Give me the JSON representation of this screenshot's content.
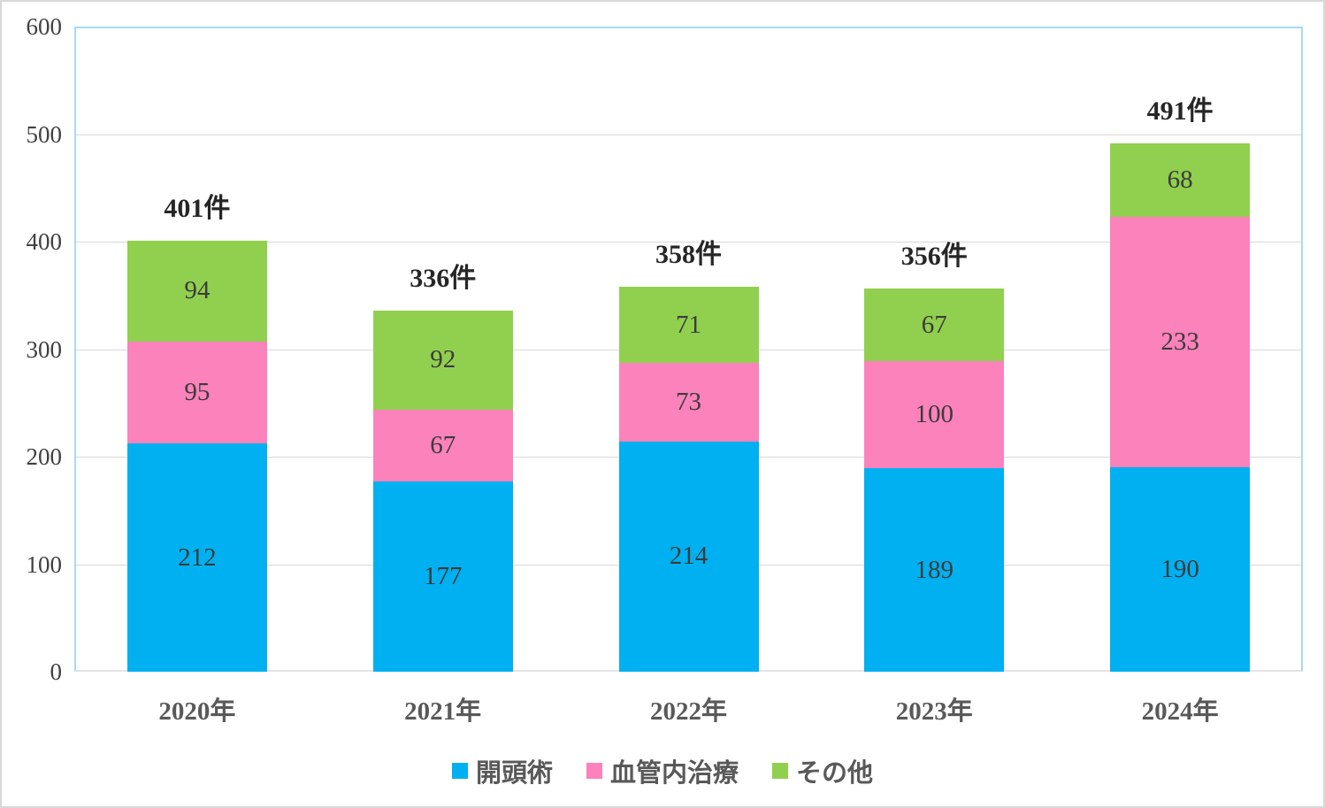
{
  "chart_data": {
    "type": "bar",
    "stacked": true,
    "title": "",
    "xlabel": "",
    "ylabel": "",
    "categories": [
      "2020年",
      "2021年",
      "2022年",
      "2023年",
      "2024年"
    ],
    "series": [
      {
        "name": "開頭術",
        "color": "#00b0f0",
        "values": [
          212,
          177,
          214,
          189,
          190
        ]
      },
      {
        "name": "血管内治療",
        "color": "#fc82bb",
        "values": [
          95,
          67,
          73,
          100,
          233
        ]
      },
      {
        "name": "その他",
        "color": "#90d04e",
        "values": [
          94,
          92,
          71,
          67,
          68
        ]
      }
    ],
    "totals": [
      401,
      336,
      358,
      356,
      491
    ],
    "total_suffix": "件",
    "ylim": [
      0,
      600
    ],
    "yticks": [
      0,
      100,
      200,
      300,
      400,
      500,
      600
    ],
    "grid": true,
    "legend_position": "bottom",
    "colors": {
      "plot_border": "#a5dbf3",
      "gridline": "#d9d9d9",
      "axis_line": "#e4e4e4",
      "outer_border": "#d9d9d9",
      "total_label": "#262626",
      "segment_label": "#3b3b3b",
      "tick_label": "#404040",
      "category_label": "#595959",
      "legend_label": "#595959"
    }
  }
}
